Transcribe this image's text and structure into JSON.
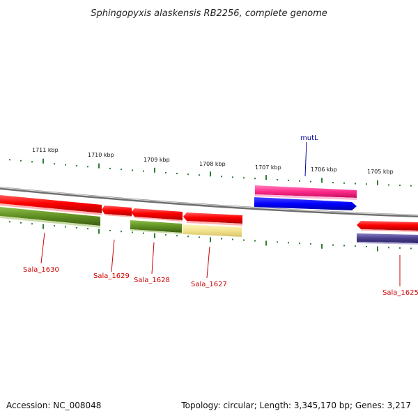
{
  "title": "Sphingopyxis alaskensis RB2256, complete genome",
  "footer": {
    "accession": "Accession: NC_008048",
    "summary": "Topology: circular; Length: 3,345,170 bp; Genes: 3,217"
  },
  "scale_labels": [
    "1711 kbp",
    "1710 kbp",
    "1709 kbp",
    "1708 kbp",
    "1707 kbp",
    "1706 kbp",
    "1705 kbp"
  ],
  "gene_labels": {
    "sala_1630": "Sala_1630",
    "sala_1629": "Sala_1629",
    "sala_1628": "Sala_1628",
    "sala_1627": "Sala_1627",
    "mutl": "mutL",
    "sala_1625": "Sala_1625"
  },
  "colors": {
    "gene_red": "#ff1a1a",
    "gene_olive": "#5a8a1e",
    "gene_khaki": "#f0e08a",
    "gene_pink": "#ff2e8c",
    "gene_blue": "#0000ff",
    "gene_purple": "#4b3f8c",
    "label_red": "#cc0000",
    "label_blue": "#000099",
    "tick_green": "#2e7d32",
    "backbone": "#777777"
  }
}
